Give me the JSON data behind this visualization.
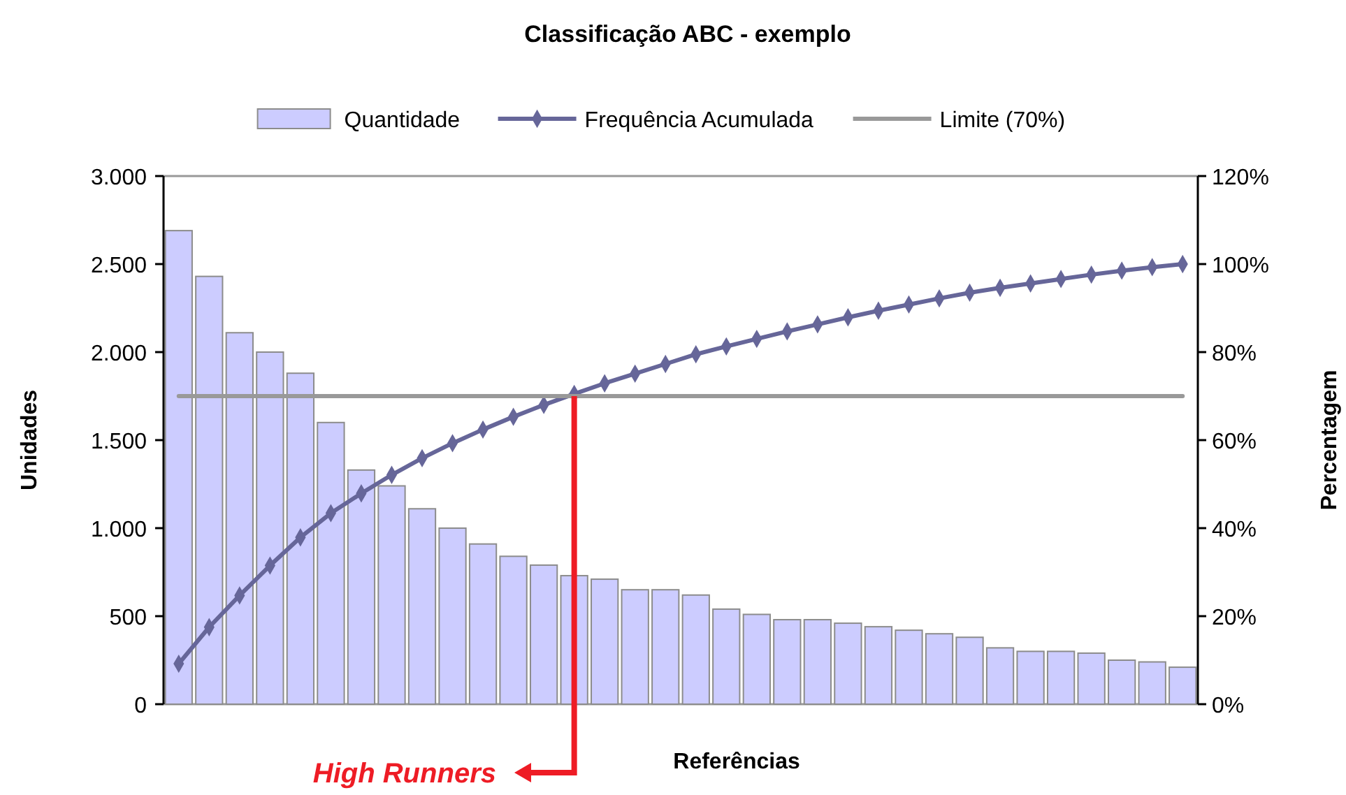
{
  "chart_data": {
    "type": "bar",
    "title": "Classificação ABC - exemplo",
    "xlabel": "Referências",
    "ylabel": "Unidades",
    "y2label": "Percentagem",
    "categories": [
      null,
      null,
      null,
      null,
      null,
      null,
      null,
      null,
      null,
      null,
      null,
      null,
      null,
      null,
      null,
      null,
      null,
      null,
      null,
      null,
      null,
      null,
      null,
      null,
      null,
      null,
      null,
      null,
      null,
      null,
      null,
      null,
      null,
      null
    ],
    "series": [
      {
        "name": "Quantidade",
        "color": "#ccccff",
        "values": [
          2690,
          2430,
          2110,
          2000,
          1880,
          1600,
          1330,
          1240,
          1110,
          1000,
          910,
          840,
          790,
          730,
          710,
          650,
          650,
          620,
          540,
          510,
          480,
          480,
          460,
          440,
          420,
          400,
          380,
          320,
          300,
          300,
          290,
          250,
          240,
          210
        ]
      },
      {
        "name": "Frequência Acumulada",
        "type": "line",
        "axis": "y2",
        "marker": "diamond",
        "color": "#666699",
        "values": [
          9.2,
          17.5,
          24.7,
          31.5,
          37.9,
          43.4,
          47.9,
          52.1,
          55.9,
          59.3,
          62.4,
          65.3,
          68.0,
          70.5,
          72.9,
          75.1,
          77.3,
          79.5,
          81.3,
          83.0,
          84.7,
          86.3,
          87.9,
          89.4,
          90.8,
          92.2,
          93.5,
          94.6,
          95.6,
          96.6,
          97.6,
          98.5,
          99.3,
          100
        ]
      },
      {
        "name": "Limite (70%)",
        "type": "line",
        "axis": "y2",
        "marker": "none",
        "color": "#999999",
        "values": [
          70,
          70,
          70,
          70,
          70,
          70,
          70,
          70,
          70,
          70,
          70,
          70,
          70,
          70,
          70,
          70,
          70,
          70,
          70,
          70,
          70,
          70,
          70,
          70,
          70,
          70,
          70,
          70,
          70,
          70,
          70,
          70,
          70,
          70
        ]
      }
    ],
    "ylim": [
      0,
      3000
    ],
    "yticks": [
      0,
      500,
      {
        "value": 1000,
        "label": "1.000"
      },
      {
        "value": 1500,
        "label": "1.500"
      },
      {
        "value": 2000,
        "label": "2.000"
      },
      {
        "value": 2500,
        "label": "2.500"
      },
      {
        "value": 3000,
        "label": "3.000"
      }
    ],
    "y2lim": [
      0,
      120
    ],
    "y2ticks": [
      {
        "value": 0,
        "label": "0%"
      },
      {
        "value": 20,
        "label": "20%"
      },
      {
        "value": 40,
        "label": "40%"
      },
      {
        "value": 60,
        "label": "60%"
      },
      {
        "value": 80,
        "label": "80%"
      },
      {
        "value": 100,
        "label": "100%"
      },
      {
        "value": 120,
        "label": "120%"
      }
    ],
    "legend": "top",
    "grid": false,
    "annotations": [
      "High Runners"
    ]
  }
}
